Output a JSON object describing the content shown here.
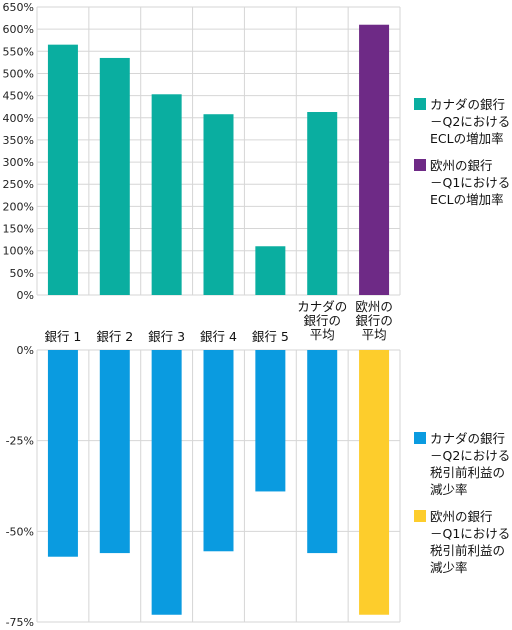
{
  "chart_data": [
    {
      "type": "bar",
      "categories": [
        "銀行 1",
        "銀行 2",
        "銀行 3",
        "銀行 4",
        "銀行 5",
        "カナダの\n銀行の\n平均",
        "欧州の\n銀行の\n平均"
      ],
      "series": [
        {
          "name": "カナダの銀行\n－Q2における\nECLの増加率",
          "color": "#0aaea0",
          "values": [
            565,
            535,
            453,
            408,
            110,
            413,
            null
          ]
        },
        {
          "name": "欧州の銀行\n－Q1における\nECLの増加率",
          "color": "#6e2a86",
          "values": [
            null,
            null,
            null,
            null,
            null,
            null,
            610
          ]
        }
      ],
      "ylim": [
        0,
        650
      ],
      "yticks": [
        "0%",
        "50%",
        "100%",
        "150%",
        "200%",
        "250%",
        "300%",
        "350%",
        "400%",
        "450%",
        "500%",
        "550%",
        "600%",
        "650%"
      ],
      "grid": true,
      "legend": "right"
    },
    {
      "type": "bar",
      "categories": [
        "銀行 1",
        "銀行 2",
        "銀行 3",
        "銀行 4",
        "銀行 5",
        "カナダの\n銀行の\n平均",
        "欧州の\n銀行の\n平均"
      ],
      "series": [
        {
          "name": "カナダの銀行\n－Q2における\n税引前利益の\n減少率",
          "color": "#0a9be0",
          "values": [
            -57,
            -56,
            -73,
            -55.5,
            -39,
            -56,
            null
          ]
        },
        {
          "name": "欧州の銀行\n－Q1における\n税引前利益の\n減少率",
          "color": "#fdcd2c",
          "values": [
            null,
            null,
            null,
            null,
            null,
            null,
            -73
          ]
        }
      ],
      "ylim": [
        -75,
        0
      ],
      "yticks": [
        "0%",
        "-25%",
        "-50%",
        "-75%"
      ],
      "grid": true,
      "legend": "right"
    }
  ]
}
